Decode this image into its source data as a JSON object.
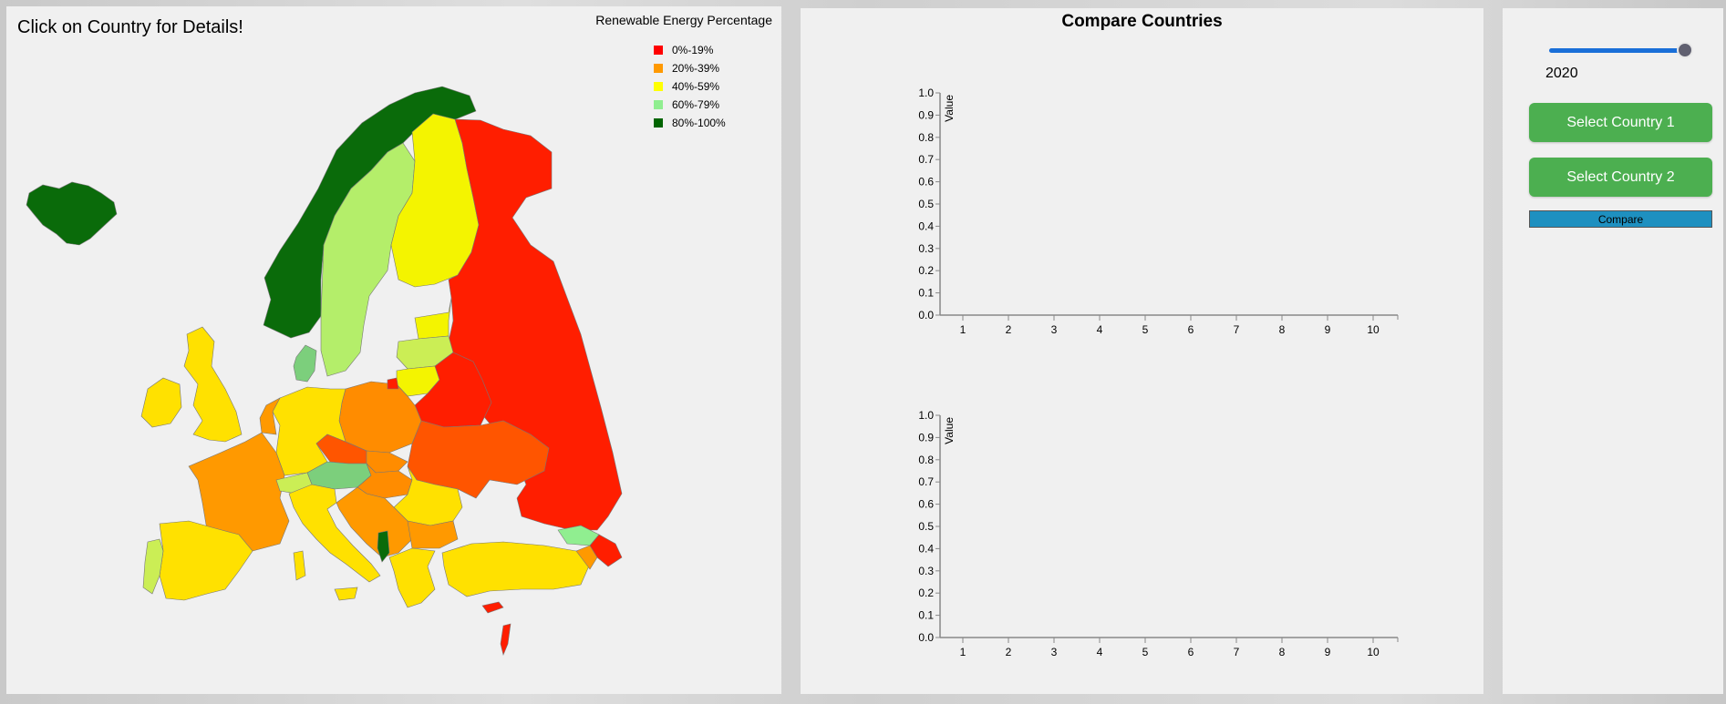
{
  "map": {
    "title": "Click on Country for Details!",
    "legend_title": "Renewable Energy Percentage",
    "legend": [
      {
        "label": "0%-19%",
        "color": "#ff0000"
      },
      {
        "label": "20%-39%",
        "color": "#ff9900"
      },
      {
        "label": "40%-59%",
        "color": "#ffff00"
      },
      {
        "label": "60%-79%",
        "color": "#90ee90"
      },
      {
        "label": "80%-100%",
        "color": "#006400"
      }
    ]
  },
  "compare": {
    "title": "Compare Countries",
    "charts": [
      {
        "ylabel": "Value",
        "yticks": [
          "0.0",
          "0.1",
          "0.2",
          "0.3",
          "0.4",
          "0.5",
          "0.6",
          "0.7",
          "0.8",
          "0.9",
          "1.0"
        ],
        "xticks": [
          "1",
          "2",
          "3",
          "4",
          "5",
          "6",
          "7",
          "8",
          "9",
          "10"
        ]
      },
      {
        "ylabel": "Value",
        "yticks": [
          "0.0",
          "0.1",
          "0.2",
          "0.3",
          "0.4",
          "0.5",
          "0.6",
          "0.7",
          "0.8",
          "0.9",
          "1.0"
        ],
        "xticks": [
          "1",
          "2",
          "3",
          "4",
          "5",
          "6",
          "7",
          "8",
          "9",
          "10"
        ]
      }
    ]
  },
  "controls": {
    "year": "2020",
    "slider_value": 1.0,
    "select_country_1": "Select Country 1",
    "select_country_2": "Select Country 2",
    "compare": "Compare"
  },
  "colors": {
    "button_green": "#4caf50",
    "compare_blue": "#1e90c0",
    "slider_blue": "#1a6fd8"
  }
}
